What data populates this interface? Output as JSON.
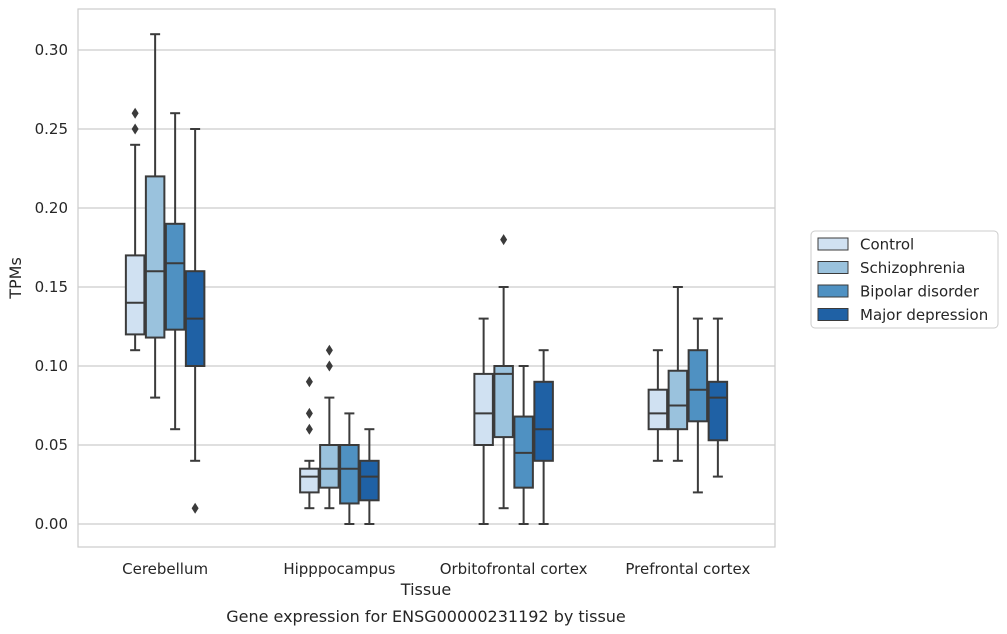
{
  "chart_data": {
    "type": "box",
    "caption": "Gene expression for ENSG00000231192 by tissue",
    "xlabel": "Tissue",
    "ylabel": "TPMs",
    "ylim": [
      -0.015,
      0.325
    ],
    "yticks": [
      0.0,
      0.05,
      0.1,
      0.15,
      0.2,
      0.25,
      0.3
    ],
    "ytick_labels": [
      "0.00",
      "0.05",
      "0.10",
      "0.15",
      "0.20",
      "0.25",
      "0.30"
    ],
    "grid": "horizontal",
    "legend_position": "right",
    "categories": [
      "Cerebellum",
      "Hipppocampus",
      "Orbitofrontal cortex",
      "Prefrontal cortex"
    ],
    "series": [
      {
        "name": "Control",
        "color": "#d0e1f2",
        "boxes": [
          {
            "whislo": 0.11,
            "q1": 0.12,
            "med": 0.14,
            "q3": 0.17,
            "whishi": 0.24,
            "fliers": [
              0.25,
              0.26
            ]
          },
          {
            "whislo": 0.01,
            "q1": 0.02,
            "med": 0.03,
            "q3": 0.035,
            "whishi": 0.04,
            "fliers": [
              0.06,
              0.07,
              0.09
            ]
          },
          {
            "whislo": 0.0,
            "q1": 0.05,
            "med": 0.07,
            "q3": 0.095,
            "whishi": 0.13,
            "fliers": []
          },
          {
            "whislo": 0.04,
            "q1": 0.06,
            "med": 0.07,
            "q3": 0.085,
            "whishi": 0.11,
            "fliers": []
          }
        ]
      },
      {
        "name": "Schizophrenia",
        "color": "#9ac2dd",
        "boxes": [
          {
            "whislo": 0.08,
            "q1": 0.118,
            "med": 0.16,
            "q3": 0.22,
            "whishi": 0.31,
            "fliers": []
          },
          {
            "whislo": 0.01,
            "q1": 0.023,
            "med": 0.035,
            "q3": 0.05,
            "whishi": 0.08,
            "fliers": [
              0.1,
              0.11
            ]
          },
          {
            "whislo": 0.01,
            "q1": 0.055,
            "med": 0.095,
            "q3": 0.1,
            "whishi": 0.15,
            "fliers": [
              0.18
            ]
          },
          {
            "whislo": 0.04,
            "q1": 0.06,
            "med": 0.075,
            "q3": 0.097,
            "whishi": 0.15,
            "fliers": []
          }
        ]
      },
      {
        "name": "Bipolar disorder",
        "color": "#4f91c2",
        "boxes": [
          {
            "whislo": 0.06,
            "q1": 0.123,
            "med": 0.165,
            "q3": 0.19,
            "whishi": 0.26,
            "fliers": []
          },
          {
            "whislo": 0.0,
            "q1": 0.013,
            "med": 0.035,
            "q3": 0.05,
            "whishi": 0.07,
            "fliers": []
          },
          {
            "whislo": 0.0,
            "q1": 0.023,
            "med": 0.045,
            "q3": 0.068,
            "whishi": 0.1,
            "fliers": []
          },
          {
            "whislo": 0.02,
            "q1": 0.065,
            "med": 0.085,
            "q3": 0.11,
            "whishi": 0.13,
            "fliers": []
          }
        ]
      },
      {
        "name": "Major depression",
        "color": "#1f61a5",
        "boxes": [
          {
            "whislo": 0.04,
            "q1": 0.1,
            "med": 0.13,
            "q3": 0.16,
            "whishi": 0.25,
            "fliers": [
              0.01
            ]
          },
          {
            "whislo": 0.0,
            "q1": 0.015,
            "med": 0.03,
            "q3": 0.04,
            "whishi": 0.06,
            "fliers": []
          },
          {
            "whislo": 0.0,
            "q1": 0.04,
            "med": 0.06,
            "q3": 0.09,
            "whishi": 0.11,
            "fliers": []
          },
          {
            "whislo": 0.03,
            "q1": 0.053,
            "med": 0.08,
            "q3": 0.09,
            "whishi": 0.13,
            "fliers": []
          }
        ]
      }
    ]
  }
}
